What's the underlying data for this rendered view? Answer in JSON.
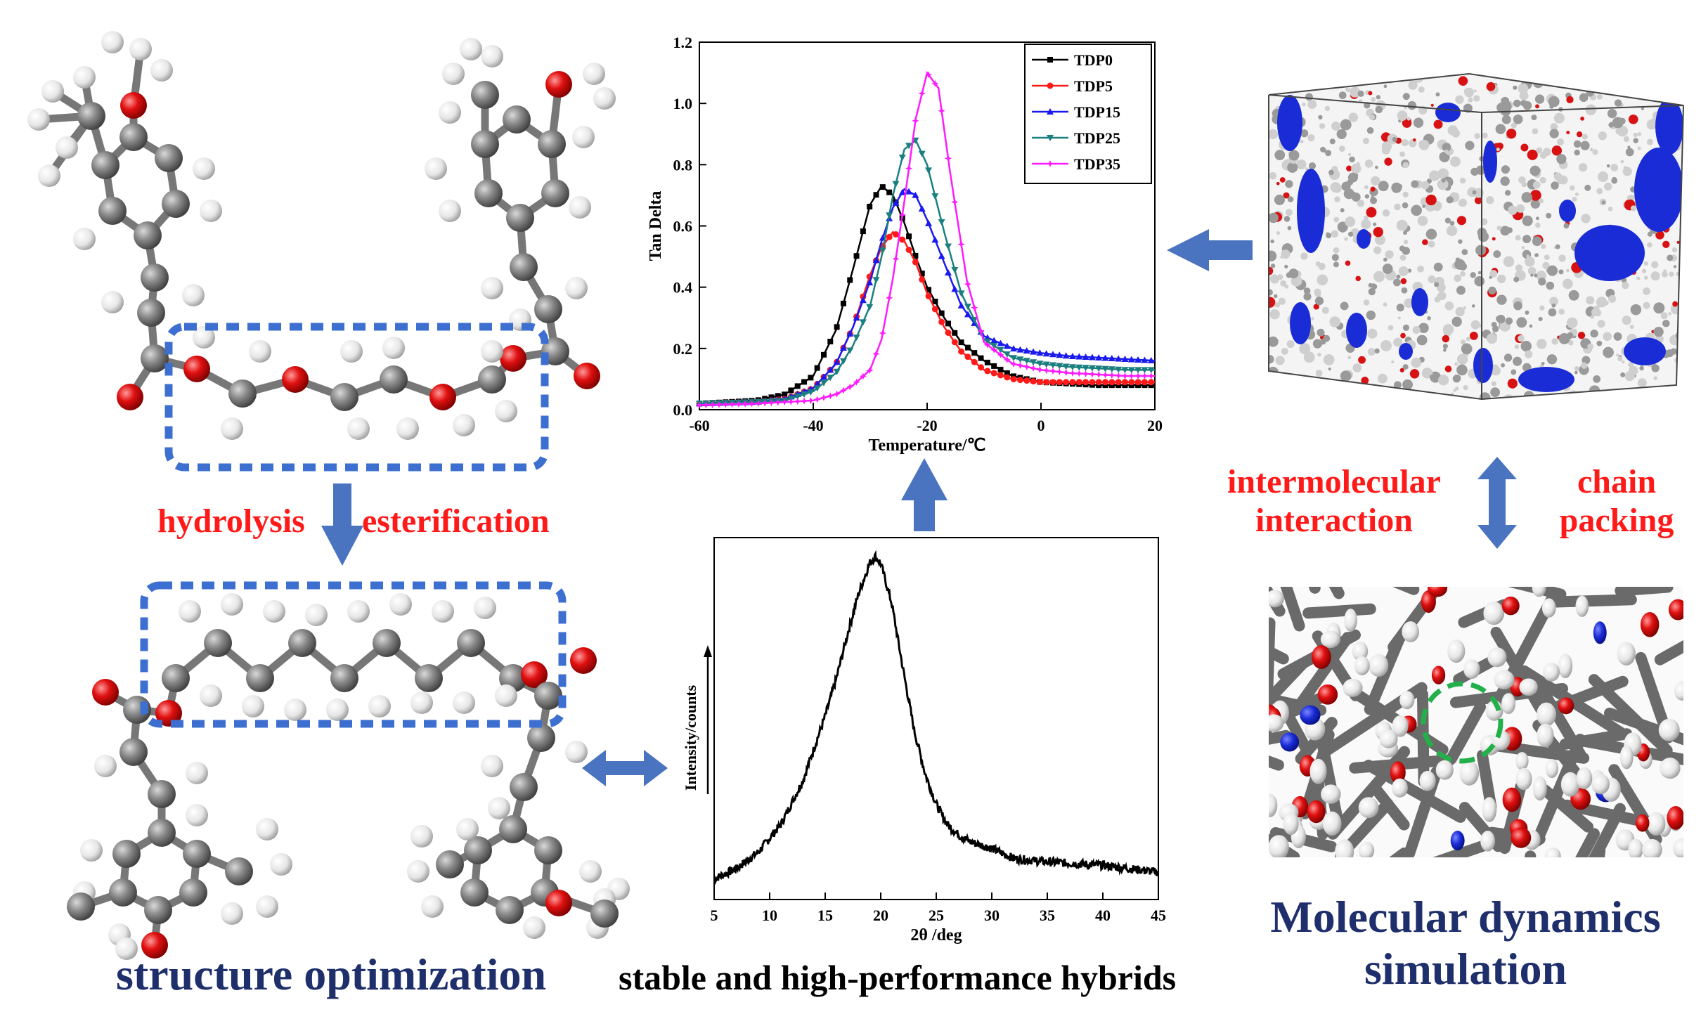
{
  "labels": {
    "hydrolysis": "hydrolysis",
    "esterification": "esterification",
    "structure_optimization": "structure optimization",
    "hybrids": "stable and high-performance hybrids",
    "intermolecular_1": "intermolecular",
    "intermolecular_2": "interaction",
    "chain_1": "chain",
    "chain_2": "packing",
    "md_1": "Molecular dynamics",
    "md_2": "simulation"
  },
  "colors": {
    "red_label": "#ff1a1a",
    "navy_label": "#1f2f6b",
    "arrow_blue": "#4a73c0",
    "dashed_box": "#3d6fd1",
    "atom_gray": "#6e6e6e",
    "atom_red": "#d81212",
    "atom_white": "#eaeaea",
    "md_blue": "#1a2cd6",
    "circle_green": "#23b04a"
  },
  "chart_data": [
    {
      "type": "line",
      "title": "",
      "xlabel": "Temperature/℃",
      "ylabel": "Tan Delta",
      "xlim": [
        -60,
        20
      ],
      "ylim": [
        0.0,
        1.2
      ],
      "xticks": [
        "-60",
        "-40",
        "-20",
        "0",
        "20"
      ],
      "yticks": [
        "0.0",
        "0.2",
        "0.4",
        "0.6",
        "0.8",
        "1.0",
        "1.2"
      ],
      "legend_position": "top-right",
      "grid": false,
      "series": [
        {
          "name": "TDP0",
          "color": "#000000",
          "marker": "square",
          "x": [
            -60,
            -50,
            -45,
            -40,
            -36,
            -33,
            -30,
            -28,
            -26,
            -24,
            -22,
            -20,
            -17,
            -14,
            -10,
            -5,
            0,
            5,
            10,
            15,
            20
          ],
          "y": [
            0.02,
            0.03,
            0.05,
            0.11,
            0.26,
            0.46,
            0.67,
            0.73,
            0.7,
            0.61,
            0.5,
            0.4,
            0.3,
            0.22,
            0.16,
            0.11,
            0.09,
            0.085,
            0.08,
            0.08,
            0.08
          ]
        },
        {
          "name": "TDP5",
          "color": "#ff1a1a",
          "marker": "circle",
          "x": [
            -60,
            -50,
            -45,
            -40,
            -36,
            -33,
            -30,
            -28,
            -26,
            -24,
            -22,
            -20,
            -17,
            -14,
            -10,
            -5,
            0,
            5,
            10,
            15,
            20
          ],
          "y": [
            0.02,
            0.025,
            0.035,
            0.07,
            0.15,
            0.27,
            0.44,
            0.53,
            0.58,
            0.55,
            0.48,
            0.38,
            0.27,
            0.19,
            0.13,
            0.1,
            0.09,
            0.09,
            0.09,
            0.09,
            0.09
          ]
        },
        {
          "name": "TDP15",
          "color": "#1a1af0",
          "marker": "triangle-up",
          "x": [
            -60,
            -50,
            -45,
            -40,
            -36,
            -33,
            -30,
            -28,
            -26,
            -24,
            -22,
            -20,
            -17,
            -14,
            -10,
            -5,
            0,
            5,
            10,
            15,
            20
          ],
          "y": [
            0.02,
            0.025,
            0.035,
            0.07,
            0.15,
            0.27,
            0.42,
            0.55,
            0.66,
            0.72,
            0.7,
            0.62,
            0.48,
            0.34,
            0.24,
            0.2,
            0.185,
            0.175,
            0.17,
            0.165,
            0.16
          ]
        },
        {
          "name": "TDP25",
          "color": "#1b7f7f",
          "marker": "triangle-down",
          "x": [
            -60,
            -50,
            -45,
            -40,
            -36,
            -33,
            -30,
            -28,
            -26,
            -24,
            -22,
            -20,
            -17,
            -14,
            -10,
            -5,
            0,
            5,
            10,
            15,
            20
          ],
          "y": [
            0.02,
            0.025,
            0.03,
            0.06,
            0.12,
            0.21,
            0.34,
            0.5,
            0.7,
            0.85,
            0.88,
            0.8,
            0.58,
            0.38,
            0.23,
            0.17,
            0.15,
            0.14,
            0.135,
            0.13,
            0.13
          ]
        },
        {
          "name": "TDP35",
          "color": "#ff1aff",
          "marker": "star",
          "x": [
            -60,
            -50,
            -45,
            -40,
            -36,
            -33,
            -30,
            -28,
            -26,
            -24,
            -22,
            -20,
            -18,
            -16,
            -13,
            -10,
            -5,
            0,
            5,
            10,
            15,
            20
          ],
          "y": [
            0.015,
            0.02,
            0.025,
            0.03,
            0.05,
            0.08,
            0.13,
            0.23,
            0.43,
            0.68,
            0.95,
            1.1,
            1.05,
            0.78,
            0.42,
            0.22,
            0.15,
            0.13,
            0.12,
            0.115,
            0.11,
            0.11
          ]
        }
      ]
    },
    {
      "type": "line",
      "title": "",
      "xlabel": "2θ /deg",
      "ylabel": "Intensity/counts",
      "xlim": [
        5,
        45
      ],
      "xticks": [
        "5",
        "10",
        "15",
        "20",
        "25",
        "30",
        "35",
        "40",
        "45"
      ],
      "grid": false,
      "series": [
        {
          "color": "#000000",
          "x": [
            5,
            7,
            9,
            11,
            13,
            15,
            16,
            17,
            18,
            19,
            19.5,
            20,
            21,
            22,
            23,
            24,
            25,
            26,
            27,
            28,
            30,
            32,
            35,
            40,
            45
          ],
          "y": [
            0.04,
            0.07,
            0.12,
            0.2,
            0.33,
            0.52,
            0.63,
            0.76,
            0.88,
            0.97,
            0.99,
            0.97,
            0.85,
            0.66,
            0.48,
            0.35,
            0.26,
            0.2,
            0.17,
            0.15,
            0.13,
            0.1,
            0.09,
            0.08,
            0.06
          ]
        }
      ]
    }
  ]
}
